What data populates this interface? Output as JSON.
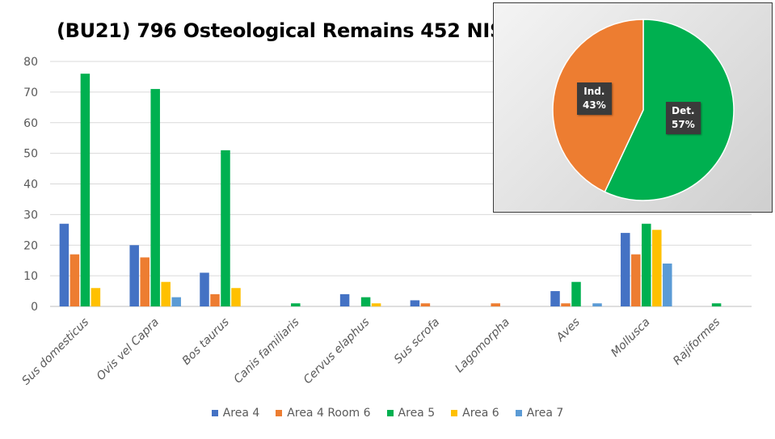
{
  "chart_data": [
    {
      "type": "bar",
      "title": "(BU21) 796 Osteological Remains 452 NISP",
      "categories": [
        "Sus domesticus",
        "Ovis vel Capra",
        "Bos taurus",
        "Canis familiaris",
        "Cervus elaphus",
        "Sus scrofa",
        "Lagomorpha",
        "Aves",
        "Mollusca",
        "Rajiformes"
      ],
      "series": [
        {
          "name": "Area 4",
          "color": "#4472C4",
          "values": [
            27,
            20,
            11,
            0,
            4,
            2,
            0,
            5,
            24,
            0
          ]
        },
        {
          "name": "Area 4 Room 6",
          "color": "#ED7D31",
          "values": [
            17,
            16,
            4,
            0,
            0,
            1,
            1,
            1,
            17,
            0
          ]
        },
        {
          "name": "Area 5",
          "color": "#00B050",
          "values": [
            76,
            71,
            51,
            1,
            3,
            0,
            0,
            8,
            27,
            1
          ]
        },
        {
          "name": "Area 6",
          "color": "#FFC000",
          "values": [
            6,
            8,
            6,
            0,
            1,
            0,
            0,
            0,
            25,
            0
          ]
        },
        {
          "name": "Area 7",
          "color": "#5B9BD5",
          "values": [
            0,
            3,
            0,
            0,
            0,
            0,
            0,
            1,
            14,
            0
          ]
        }
      ],
      "yticks": [
        "0",
        "10",
        "20",
        "30",
        "40",
        "50",
        "60",
        "70",
        "80"
      ],
      "ylim": [
        0,
        80
      ],
      "grid": true,
      "legend": "bottom"
    },
    {
      "type": "pie",
      "slices": [
        {
          "name": "Det.",
          "label": "57%",
          "value": 57,
          "color": "#00B050"
        },
        {
          "name": "Ind.",
          "label": "43%",
          "value": 43,
          "color": "#ED7D31"
        }
      ]
    }
  ]
}
